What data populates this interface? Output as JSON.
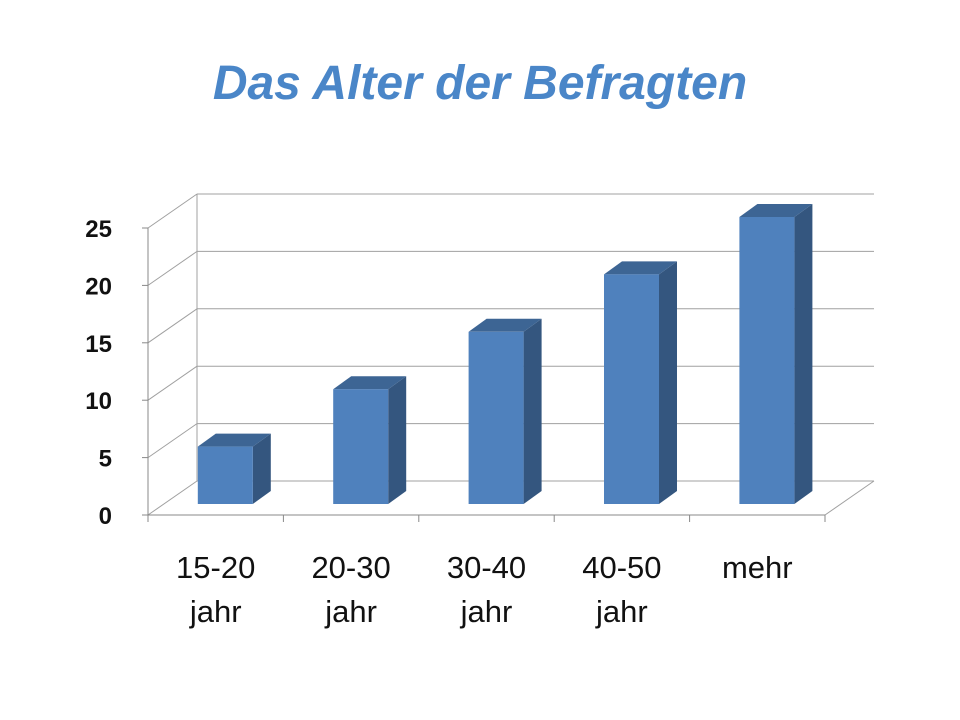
{
  "chart_data": {
    "type": "bar",
    "title": "Das Alter der Befragten",
    "xlabel": "",
    "ylabel": "",
    "categories": [
      [
        "15-20",
        "jahr"
      ],
      [
        "20-30",
        "jahr"
      ],
      [
        "30-40",
        "jahr"
      ],
      [
        "40-50",
        "jahr"
      ],
      [
        "mehr"
      ]
    ],
    "values": [
      5,
      10,
      15,
      20,
      25
    ],
    "ylim": [
      0,
      25
    ],
    "yticks": [
      "0",
      "5",
      "10",
      "15",
      "20",
      "25"
    ],
    "grid": true,
    "style": "3d-column",
    "colors": {
      "bar_front": "#4f81bd",
      "bar_side": "#34567f",
      "bar_top": "#3d6594",
      "title": "#4a86c8"
    }
  }
}
